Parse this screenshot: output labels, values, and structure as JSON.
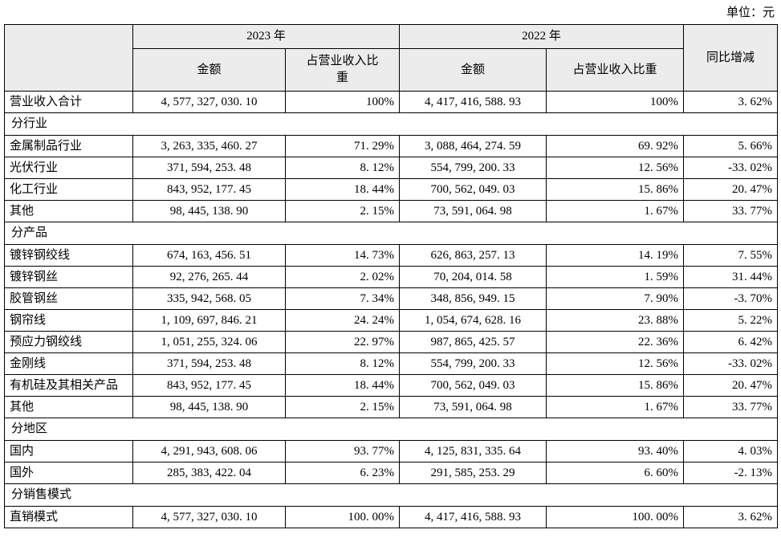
{
  "unit_label": "单位：元",
  "table": {
    "header": {
      "year_2023": "2023 年",
      "year_2022": "2022 年",
      "yoy": "同比增减",
      "amount": "金额",
      "ratio": "占营业收入比重"
    },
    "rows": [
      {
        "type": "data",
        "label": "营业收入合计",
        "a2023": "4, 577, 327, 030. 10",
        "r2023": "100%",
        "a2022": "4, 417, 416, 588. 93",
        "r2022": "100%",
        "yoy": "3. 62%"
      },
      {
        "type": "section",
        "label": "分行业"
      },
      {
        "type": "data",
        "label": "金属制品行业",
        "a2023": "3, 263, 335, 460. 27",
        "r2023": "71. 29%",
        "a2022": "3, 088, 464, 274. 59",
        "r2022": "69. 92%",
        "yoy": "5. 66%"
      },
      {
        "type": "data",
        "label": "光伏行业",
        "a2023": "371, 594, 253. 48",
        "r2023": "8. 12%",
        "a2022": "554, 799, 200. 33",
        "r2022": "12. 56%",
        "yoy": "-33. 02%"
      },
      {
        "type": "data",
        "label": "化工行业",
        "a2023": "843, 952, 177. 45",
        "r2023": "18. 44%",
        "a2022": "700, 562, 049. 03",
        "r2022": "15. 86%",
        "yoy": "20. 47%"
      },
      {
        "type": "data",
        "label": "其他",
        "a2023": "98, 445, 138. 90",
        "r2023": "2. 15%",
        "a2022": "73, 591, 064. 98",
        "r2022": "1. 67%",
        "yoy": "33. 77%"
      },
      {
        "type": "section",
        "label": "分产品"
      },
      {
        "type": "data",
        "label": "镀锌钢绞线",
        "a2023": "674, 163, 456. 51",
        "r2023": "14. 73%",
        "a2022": "626, 863, 257. 13",
        "r2022": "14. 19%",
        "yoy": "7. 55%"
      },
      {
        "type": "data",
        "label": "镀锌钢丝",
        "a2023": "92, 276, 265. 44",
        "r2023": "2. 02%",
        "a2022": "70, 204, 014. 58",
        "r2022": "1. 59%",
        "yoy": "31. 44%"
      },
      {
        "type": "data",
        "label": "胶管钢丝",
        "a2023": "335, 942, 568. 05",
        "r2023": "7. 34%",
        "a2022": "348, 856, 949. 15",
        "r2022": "7. 90%",
        "yoy": "-3. 70%"
      },
      {
        "type": "data",
        "label": "钢帘线",
        "a2023": "1, 109, 697, 846. 21",
        "r2023": "24. 24%",
        "a2022": "1, 054, 674, 628. 16",
        "r2022": "23. 88%",
        "yoy": "5. 22%"
      },
      {
        "type": "data",
        "label": "预应力钢绞线",
        "a2023": "1, 051, 255, 324. 06",
        "r2023": "22. 97%",
        "a2022": "987, 865, 425. 57",
        "r2022": "22. 36%",
        "yoy": "6. 42%"
      },
      {
        "type": "data",
        "label": "金刚线",
        "a2023": "371, 594, 253. 48",
        "r2023": "8. 12%",
        "a2022": "554, 799, 200. 33",
        "r2022": "12. 56%",
        "yoy": "-33. 02%"
      },
      {
        "type": "data",
        "label": "有机硅及其相关产品",
        "a2023": "843, 952, 177. 45",
        "r2023": "18. 44%",
        "a2022": "700, 562, 049. 03",
        "r2022": "15. 86%",
        "yoy": "20. 47%"
      },
      {
        "type": "data",
        "label": "其他",
        "a2023": "98, 445, 138. 90",
        "r2023": "2. 15%",
        "a2022": "73, 591, 064. 98",
        "r2022": "1. 67%",
        "yoy": "33. 77%"
      },
      {
        "type": "section",
        "label": "分地区"
      },
      {
        "type": "data",
        "label": "国内",
        "a2023": "4, 291, 943, 608. 06",
        "r2023": "93. 77%",
        "a2022": "4, 125, 831, 335. 64",
        "r2022": "93. 40%",
        "yoy": "4. 03%"
      },
      {
        "type": "data",
        "label": "国外",
        "a2023": "285, 383, 422. 04",
        "r2023": "6. 23%",
        "a2022": "291, 585, 253. 29",
        "r2022": "6. 60%",
        "yoy": "-2. 13%"
      },
      {
        "type": "section",
        "label": "分销售模式"
      },
      {
        "type": "data",
        "label": "直销模式",
        "a2023": "4, 577, 327, 030. 10",
        "r2023": "100. 00%",
        "a2022": "4, 417, 416, 588. 93",
        "r2022": "100. 00%",
        "yoy": "3. 62%"
      }
    ]
  }
}
